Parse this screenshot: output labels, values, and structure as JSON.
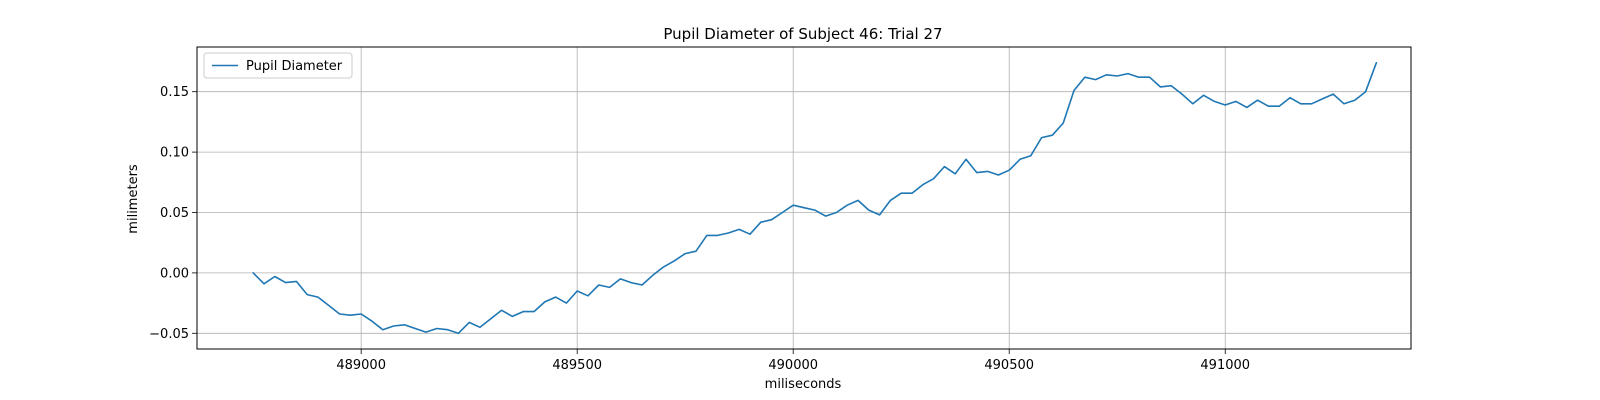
{
  "chart_data": {
    "type": "line",
    "title": "Pupil Diameter of Subject 46: Trial 27",
    "xlabel": "miliseconds",
    "ylabel": "milimeters",
    "xlim": [
      488620,
      491430
    ],
    "ylim": [
      -0.063,
      0.187
    ],
    "x_ticks": [
      489000,
      489500,
      490000,
      490500,
      491000
    ],
    "x_tick_labels": [
      "489000",
      "489500",
      "490000",
      "490500",
      "491000"
    ],
    "y_ticks": [
      -0.05,
      0.0,
      0.05,
      0.1,
      0.15
    ],
    "y_tick_labels": [
      "−0.05",
      "0.00",
      "0.05",
      "0.10",
      "0.15"
    ],
    "grid": true,
    "legend_position": "top-left",
    "line_color": "#1f77b4",
    "series": [
      {
        "name": "Pupil Diameter",
        "x": [
          488750,
          488775,
          488800,
          488825,
          488850,
          488875,
          488900,
          488925,
          488950,
          488975,
          489000,
          489025,
          489050,
          489075,
          489100,
          489125,
          489150,
          489175,
          489200,
          489225,
          489250,
          489275,
          489300,
          489325,
          489350,
          489375,
          489400,
          489425,
          489450,
          489475,
          489500,
          489525,
          489550,
          489575,
          489600,
          489625,
          489650,
          489675,
          489700,
          489725,
          489750,
          489775,
          489800,
          489825,
          489850,
          489875,
          489900,
          489925,
          489950,
          489975,
          490000,
          490025,
          490050,
          490075,
          490100,
          490125,
          490150,
          490175,
          490200,
          490225,
          490250,
          490275,
          490300,
          490325,
          490350,
          490375,
          490400,
          490425,
          490450,
          490475,
          490500,
          490525,
          490550,
          490575,
          490600,
          490625,
          490650,
          490675,
          490700,
          490725,
          490750,
          490775,
          490800,
          490825,
          490850,
          490875,
          490900,
          490925,
          490950,
          490975,
          491000,
          491025,
          491050,
          491075,
          491100,
          491125,
          491150,
          491175,
          491200,
          491225,
          491250,
          491275,
          491300,
          491325,
          491350
        ],
        "y": [
          0.0,
          -0.009,
          -0.003,
          -0.008,
          -0.007,
          -0.018,
          -0.02,
          -0.027,
          -0.034,
          -0.035,
          -0.034,
          -0.04,
          -0.047,
          -0.044,
          -0.043,
          -0.046,
          -0.049,
          -0.046,
          -0.047,
          -0.05,
          -0.041,
          -0.045,
          -0.038,
          -0.031,
          -0.036,
          -0.032,
          -0.032,
          -0.024,
          -0.02,
          -0.025,
          -0.015,
          -0.019,
          -0.01,
          -0.012,
          -0.005,
          -0.008,
          -0.01,
          -0.002,
          0.005,
          0.01,
          0.016,
          0.018,
          0.031,
          0.031,
          0.033,
          0.036,
          0.032,
          0.042,
          0.044,
          0.05,
          0.056,
          0.054,
          0.052,
          0.047,
          0.05,
          0.056,
          0.06,
          0.052,
          0.048,
          0.06,
          0.066,
          0.066,
          0.073,
          0.078,
          0.088,
          0.082,
          0.094,
          0.083,
          0.084,
          0.081,
          0.085,
          0.094,
          0.097,
          0.112,
          0.114,
          0.124,
          0.151,
          0.162,
          0.16,
          0.164,
          0.163,
          0.165,
          0.162,
          0.162,
          0.154,
          0.155,
          0.148,
          0.14,
          0.147,
          0.142,
          0.139,
          0.142,
          0.137,
          0.143,
          0.138,
          0.138,
          0.145,
          0.14,
          0.14,
          0.144,
          0.148,
          0.14,
          0.143,
          0.15,
          0.174
        ]
      }
    ]
  }
}
